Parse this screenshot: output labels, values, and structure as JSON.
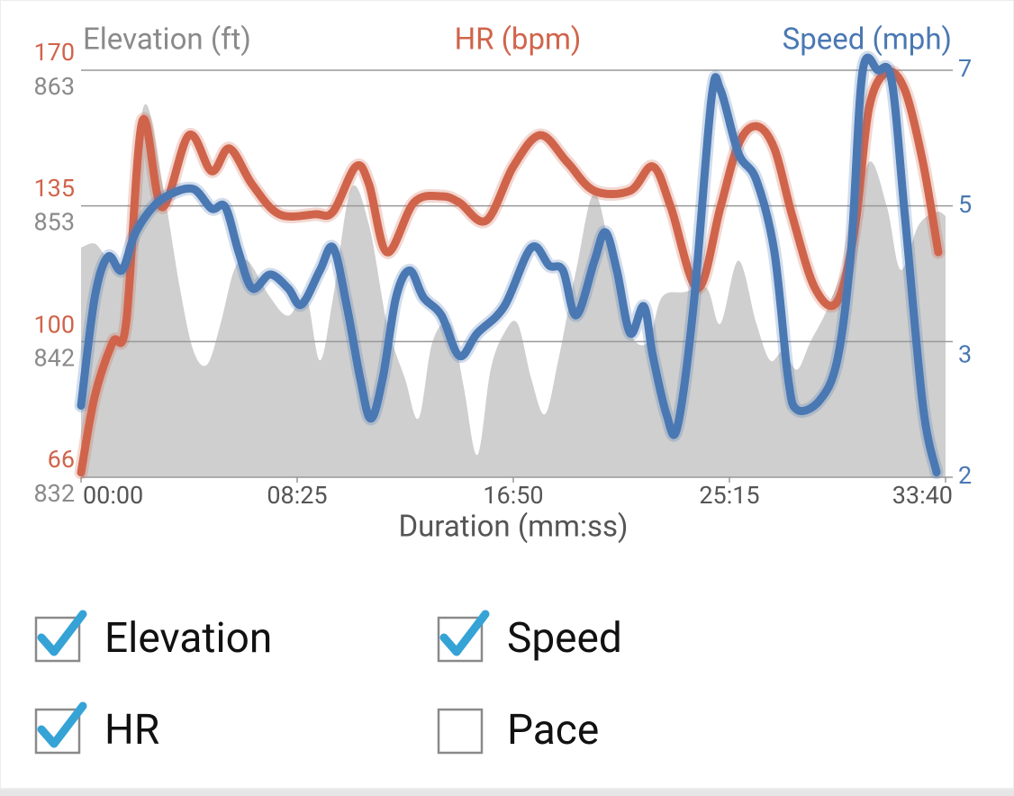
{
  "chart_data": {
    "type": "multi-axis-line",
    "xlabel": "Duration (mm:ss)",
    "xlim": [
      0,
      2020
    ],
    "xticks": [
      {
        "value": 0,
        "label": "00:00"
      },
      {
        "value": 505,
        "label": "08:25"
      },
      {
        "value": 1010,
        "label": "16:50"
      },
      {
        "value": 1515,
        "label": "25:15"
      },
      {
        "value": 2020,
        "label": "33:40"
      }
    ],
    "ylabel": "Elevation (ft)",
    "ylim": [
      832,
      863
    ],
    "yticks": [
      832,
      {
        "value": 842.33,
        "label": "842"
      },
      {
        "value": 852.67,
        "label": "853"
      },
      863
    ],
    "y3label": "HR (bpm)",
    "y3lim": [
      66,
      170
    ],
    "y3ticks": [
      66,
      {
        "value": 100.4,
        "label": "100"
      },
      {
        "value": 135.3,
        "label": "135"
      },
      170
    ],
    "y2label": "Speed (mph)",
    "y2lim": [
      2,
      7
    ],
    "y2ticks": [
      2,
      {
        "value": 3.49,
        "label": "3"
      },
      {
        "value": 5.33,
        "label": "5"
      },
      7
    ],
    "grid": true,
    "series": [
      {
        "name": "Elevation",
        "kind": "area",
        "axis": "y",
        "color": "#cfcfcf",
        "x": [
          0,
          32,
          63,
          105,
          147,
          189,
          231,
          263,
          295,
          326,
          358,
          389,
          442,
          484,
          526,
          558,
          589,
          631,
          673,
          715,
          757,
          789,
          821,
          863,
          894,
          926,
          957,
          989,
          1020,
          1052,
          1084,
          1115,
          1157,
          1199,
          1241,
          1283,
          1325,
          1357,
          1410,
          1462,
          1494,
          1536,
          1578,
          1610,
          1641,
          1673,
          1704,
          1746,
          1799,
          1841,
          1883,
          1915,
          1957,
          1999,
          2020
        ],
        "values": [
          849.5,
          849.8,
          848.8,
          849.2,
          860.3,
          854.6,
          846.4,
          841.6,
          840.6,
          843.7,
          847.8,
          848.5,
          845.7,
          844.3,
          845.7,
          840.9,
          845.7,
          854.0,
          851.2,
          843.7,
          839.5,
          836.5,
          842.3,
          843.7,
          838.9,
          833.7,
          840.2,
          843.0,
          843.7,
          839.5,
          836.8,
          840.9,
          847.8,
          853.6,
          848.5,
          843.0,
          842.3,
          845.7,
          846.1,
          846.4,
          843.7,
          848.5,
          843.7,
          840.9,
          841.6,
          840.2,
          842.3,
          845.0,
          849.8,
          856.0,
          852.6,
          847.8,
          851.2,
          852.2,
          851.9
        ]
      },
      {
        "name": "HR",
        "kind": "line",
        "axis": "y3",
        "color": "#d0644b",
        "x": [
          0,
          32,
          74,
          105,
          143,
          189,
          252,
          305,
          347,
          400,
          463,
          547,
          589,
          642,
          673,
          715,
          778,
          842,
          884,
          947,
          1010,
          1073,
          1136,
          1199,
          1283,
          1336,
          1378,
          1441,
          1494,
          1536,
          1578,
          1620,
          1662,
          1715,
          1767,
          1809,
          1841,
          1883,
          1925,
          1967,
          2003
        ],
        "values": [
          67.2,
          86.7,
          100.5,
          105.1,
          156.9,
          135.0,
          153.4,
          144.2,
          150.0,
          140.8,
          133.2,
          133.2,
          133.9,
          145.4,
          140.8,
          123.5,
          136.2,
          137.8,
          136.2,
          131.6,
          145.4,
          153.4,
          146.5,
          139.2,
          139.2,
          145.4,
          135.0,
          114.3,
          135.0,
          151.1,
          155.7,
          150.0,
          132.7,
          114.3,
          110.9,
          130.4,
          160.3,
          169.5,
          164.9,
          146.5,
          123.5
        ]
      },
      {
        "name": "Speed",
        "kind": "line",
        "axis": "y2",
        "color": "#4a78b3",
        "x": [
          0,
          32,
          63,
          95,
          126,
          168,
          210,
          263,
          305,
          337,
          368,
          400,
          442,
          484,
          515,
          558,
          589,
          621,
          652,
          677,
          705,
          736,
          768,
          800,
          842,
          884,
          926,
          989,
          1052,
          1094,
          1126,
          1157,
          1199,
          1225,
          1252,
          1283,
          1315,
          1336,
          1368,
          1393,
          1431,
          1473,
          1494,
          1536,
          1578,
          1620,
          1652,
          1673,
          1725,
          1767,
          1799,
          1826,
          1862,
          1894,
          1925,
          1967,
          1999
        ],
        "values": [
          2.88,
          4.21,
          4.71,
          4.54,
          4.99,
          5.32,
          5.48,
          5.54,
          5.3,
          5.32,
          4.77,
          4.32,
          4.49,
          4.32,
          4.12,
          4.54,
          4.82,
          4.1,
          3.22,
          2.72,
          3.22,
          4.21,
          4.54,
          4.21,
          3.99,
          3.49,
          3.77,
          4.1,
          4.82,
          4.6,
          4.54,
          3.99,
          4.65,
          5.01,
          4.54,
          3.77,
          4.1,
          3.49,
          2.77,
          2.61,
          4.1,
          6.65,
          6.76,
          5.98,
          5.65,
          4.77,
          3.22,
          2.83,
          2.94,
          3.44,
          4.77,
          6.98,
          7.0,
          6.87,
          5.21,
          2.88,
          2.06
        ]
      }
    ]
  },
  "checkboxes": [
    {
      "label": "Elevation",
      "checked": true
    },
    {
      "label": "Speed",
      "checked": true
    },
    {
      "label": "HR",
      "checked": true
    },
    {
      "label": "Pace",
      "checked": false
    }
  ]
}
